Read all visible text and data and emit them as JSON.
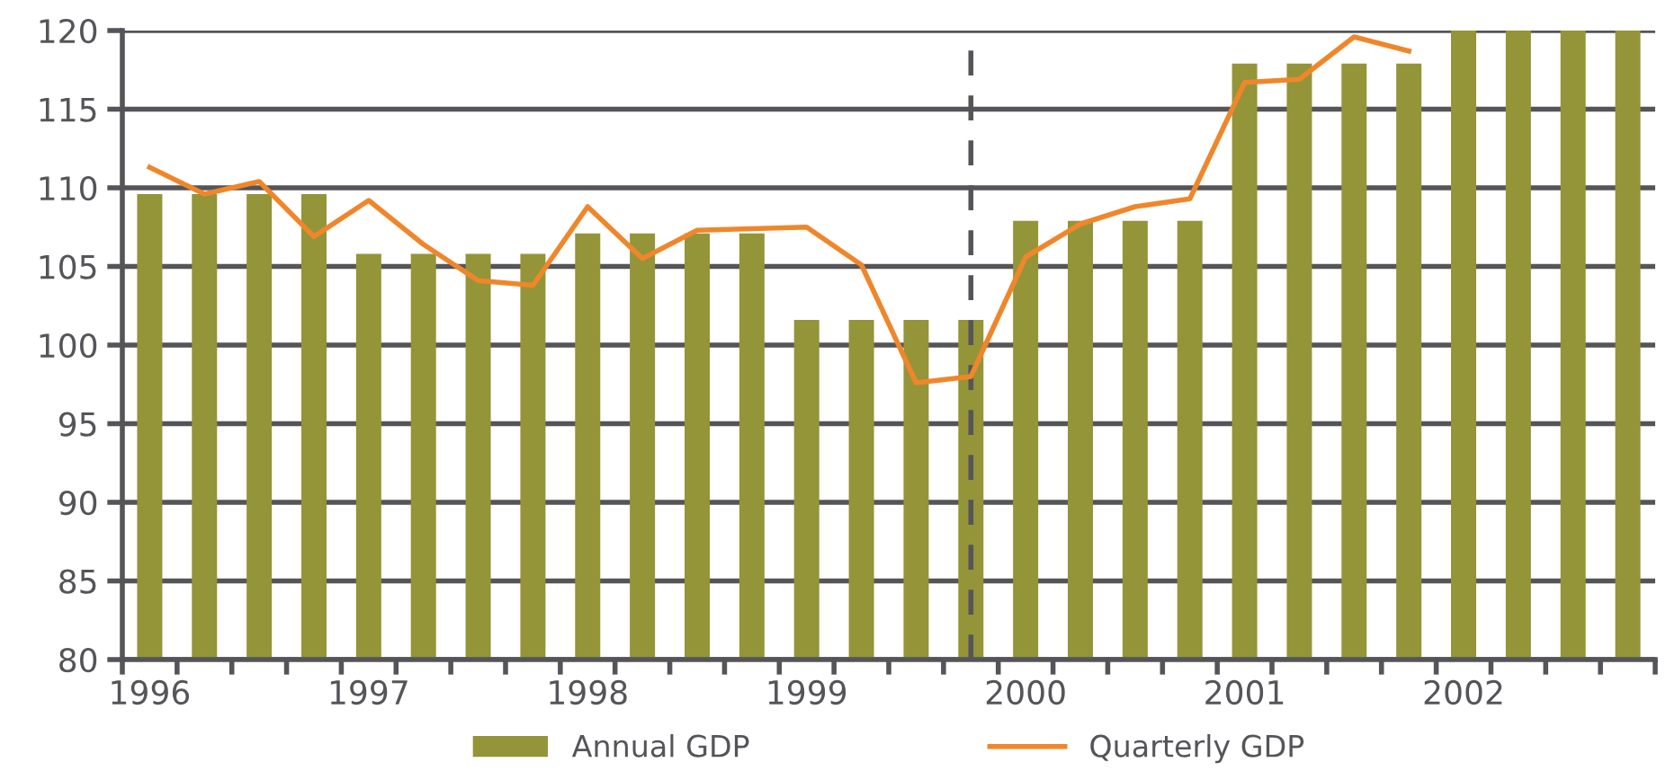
{
  "chart_data": {
    "type": "bar",
    "x": [
      1996,
      1996.25,
      1996.5,
      1996.75,
      1997,
      1997.25,
      1997.5,
      1997.75,
      1998,
      1998.25,
      1998.5,
      1998.75,
      1999,
      1999.25,
      1999.5,
      1999.75,
      2000,
      2000.25,
      2000.5,
      2000.75,
      2001,
      2001.25,
      2001.5,
      2001.75,
      2002,
      2002.25,
      2002.5,
      2002.75
    ],
    "series": [
      {
        "name": "Annual GDP",
        "color": "#949439",
        "values": [
          109.6,
          109.6,
          109.6,
          109.6,
          105.8,
          105.8,
          105.8,
          105.8,
          107.1,
          107.1,
          107.1,
          107.1,
          101.6,
          101.6,
          101.6,
          101.6,
          107.9,
          107.9,
          107.9,
          107.9,
          117.9,
          117.9,
          117.9,
          117.9,
          120,
          120,
          120,
          120
        ]
      },
      {
        "name": "Quarterly GDP",
        "type": "line",
        "color": "#f0862a",
        "values": [
          111.3,
          109.6,
          110.4,
          106.9,
          109.2,
          106.4,
          104.1,
          103.8,
          108.8,
          105.5,
          107.3,
          107.4,
          107.5,
          105.1,
          97.6,
          98.0,
          105.6,
          107.7,
          108.8,
          109.3,
          116.7,
          116.9,
          119.6,
          118.7,
          null,
          null,
          null,
          null
        ]
      }
    ],
    "xlim": [
      1995.875,
      2002.875
    ],
    "xticks": [
      {
        "value": 1995.875,
        "label": null
      },
      {
        "value": 1996,
        "label": "1996"
      },
      {
        "value": 1996.125,
        "label": null
      },
      {
        "value": 1996.375,
        "label": null
      },
      {
        "value": 1996.625,
        "label": null
      },
      {
        "value": 1996.875,
        "label": null
      },
      {
        "value": 1997,
        "label": "1997"
      },
      {
        "value": 1997.125,
        "label": null
      },
      {
        "value": 1997.375,
        "label": null
      },
      {
        "value": 1997.625,
        "label": null
      },
      {
        "value": 1997.875,
        "label": null
      },
      {
        "value": 1998,
        "label": "1998"
      },
      {
        "value": 1998.125,
        "label": null
      },
      {
        "value": 1998.375,
        "label": null
      },
      {
        "value": 1998.625,
        "label": null
      },
      {
        "value": 1998.875,
        "label": null
      },
      {
        "value": 1999,
        "label": "1999"
      },
      {
        "value": 1999.125,
        "label": null
      },
      {
        "value": 1999.375,
        "label": null
      },
      {
        "value": 1999.625,
        "label": null
      },
      {
        "value": 1999.875,
        "label": null
      },
      {
        "value": 2000,
        "label": "2000"
      },
      {
        "value": 2000.125,
        "label": null
      },
      {
        "value": 2000.375,
        "label": null
      },
      {
        "value": 2000.625,
        "label": null
      },
      {
        "value": 2000.875,
        "label": null
      },
      {
        "value": 2001,
        "label": "2001"
      },
      {
        "value": 2001.125,
        "label": null
      },
      {
        "value": 2001.375,
        "label": null
      },
      {
        "value": 2001.625,
        "label": null
      },
      {
        "value": 2001.875,
        "label": null
      },
      {
        "value": 2002,
        "label": "2002"
      },
      {
        "value": 2002.125,
        "label": null
      },
      {
        "value": 2002.375,
        "label": null
      },
      {
        "value": 2002.625,
        "label": null
      },
      {
        "value": 2002.875,
        "label": null
      }
    ],
    "ylim": [
      80,
      120
    ],
    "yticks": [
      80,
      85,
      90,
      95,
      100,
      105,
      110,
      115,
      120
    ],
    "grid": "y",
    "legend": "bottom",
    "marker": "none",
    "line_style": "solid",
    "ref_lines": [
      {
        "axis": "x",
        "value": 1999.75,
        "color": "#555559",
        "line_style": "dashed"
      }
    ]
  }
}
